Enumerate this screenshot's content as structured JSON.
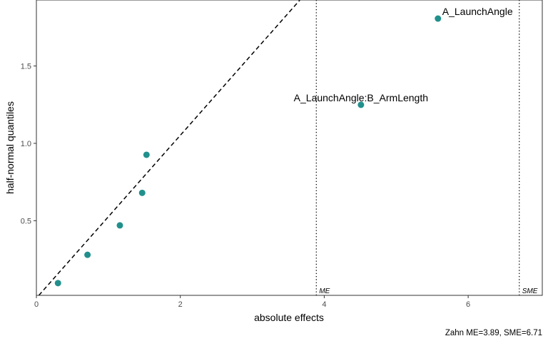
{
  "chart_data": {
    "type": "scatter",
    "title": "",
    "xlabel": "absolute effects",
    "ylabel": "half-normal quantiles",
    "xlim": [
      0,
      7.03
    ],
    "ylim": [
      0.018,
      1.926
    ],
    "xticks": [
      0,
      2,
      4,
      6
    ],
    "yticks": [
      0.5,
      1.0,
      1.5
    ],
    "xtick_labels": [
      "0",
      "2",
      "4",
      "6"
    ],
    "ytick_labels": [
      "0.5",
      "1.0",
      "1.5"
    ],
    "points": [
      {
        "x": 0.3,
        "y": 0.097,
        "label": ""
      },
      {
        "x": 0.71,
        "y": 0.28,
        "label": ""
      },
      {
        "x": 1.16,
        "y": 0.47,
        "label": ""
      },
      {
        "x": 1.47,
        "y": 0.68,
        "label": ""
      },
      {
        "x": 1.53,
        "y": 0.926,
        "label": ""
      },
      {
        "x": 4.51,
        "y": 1.249,
        "label": "A_LaunchAngle:B_ArmLength"
      },
      {
        "x": 5.58,
        "y": 1.806,
        "label": "A_LaunchAngle"
      }
    ],
    "reference_line": {
      "slope": 0.526,
      "intercept": 0
    },
    "vlines": [
      {
        "x": 3.89,
        "label": "ME"
      },
      {
        "x": 6.71,
        "label": "SME"
      }
    ],
    "caption": "Zahn ME=3.89, SME=6.71",
    "point_color": "#21908C",
    "grid": false
  }
}
